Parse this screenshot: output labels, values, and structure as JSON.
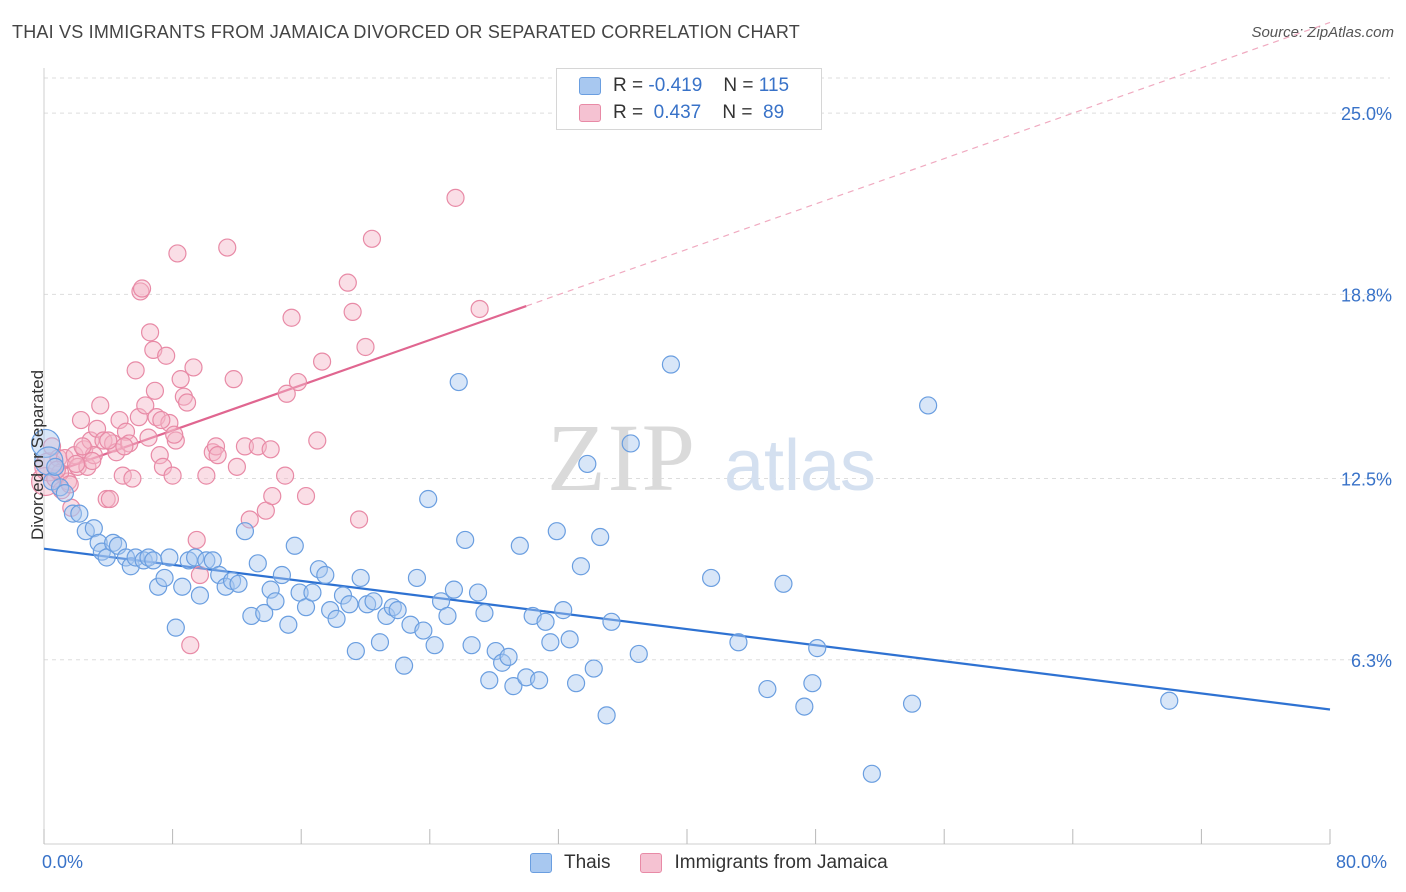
{
  "title": "THAI VS IMMIGRANTS FROM JAMAICA DIVORCED OR SEPARATED CORRELATION CHART",
  "source": "Source: ZipAtlas.com",
  "watermark": {
    "zip": "ZIP",
    "atlas": "atlas"
  },
  "legend": {
    "rows": [
      {
        "r_label": "R =",
        "r_value": "-0.419",
        "n_label": "N =",
        "n_value": "115"
      },
      {
        "r_label": "R =",
        "r_value": " 0.437",
        "n_label": "N =",
        "n_value": " 89"
      }
    ]
  },
  "colors": {
    "blue_fill": "#a8c8f0",
    "blue_stroke": "#6a9ee0",
    "blue_line": "#2e72d2",
    "pink_fill": "#f5b6c8",
    "pink_stroke": "#e88aa6",
    "pink_line": "#e06690",
    "axis_label": "#3872c8",
    "grid": "#dddddd"
  },
  "chart_data": {
    "type": "scatter",
    "title": "THAI VS IMMIGRANTS FROM JAMAICA DIVORCED OR SEPARATED CORRELATION CHART",
    "xlabel": "",
    "ylabel": "Divorced or Separated",
    "xlim": [
      0,
      80
    ],
    "ylim": [
      0,
      26.2
    ],
    "x_tick_labels": [
      "0.0%",
      "80.0%"
    ],
    "y_ticks": [
      6.3,
      12.5,
      18.8,
      25.0
    ],
    "y_tick_labels": [
      "6.3%",
      "12.5%",
      "18.8%",
      "25.0%"
    ],
    "grid": true,
    "legend_position": "top-center",
    "series": [
      {
        "name": "Thais",
        "trend": {
          "x": [
            0,
            80
          ],
          "y": [
            10.1,
            4.6
          ]
        },
        "points": [
          [
            0.1,
            13.7
          ],
          [
            0.3,
            13.1
          ],
          [
            0.5,
            12.4
          ],
          [
            0.7,
            12.9
          ],
          [
            1.0,
            12.2
          ],
          [
            1.3,
            12.0
          ],
          [
            1.8,
            11.3
          ],
          [
            2.2,
            11.3
          ],
          [
            2.6,
            10.7
          ],
          [
            3.1,
            10.8
          ],
          [
            3.4,
            10.3
          ],
          [
            3.6,
            10.0
          ],
          [
            3.9,
            9.8
          ],
          [
            4.3,
            10.3
          ],
          [
            4.6,
            10.2
          ],
          [
            5.1,
            9.8
          ],
          [
            5.4,
            9.5
          ],
          [
            5.7,
            9.8
          ],
          [
            6.2,
            9.7
          ],
          [
            6.5,
            9.8
          ],
          [
            6.8,
            9.7
          ],
          [
            7.1,
            8.8
          ],
          [
            7.5,
            9.1
          ],
          [
            7.8,
            9.8
          ],
          [
            8.2,
            7.4
          ],
          [
            8.6,
            8.8
          ],
          [
            9.0,
            9.7
          ],
          [
            9.4,
            9.8
          ],
          [
            9.7,
            8.5
          ],
          [
            10.1,
            9.7
          ],
          [
            10.5,
            9.7
          ],
          [
            10.9,
            9.2
          ],
          [
            11.3,
            8.8
          ],
          [
            11.7,
            9.0
          ],
          [
            12.1,
            8.9
          ],
          [
            12.5,
            10.7
          ],
          [
            12.9,
            7.8
          ],
          [
            13.3,
            9.6
          ],
          [
            13.7,
            7.9
          ],
          [
            14.1,
            8.7
          ],
          [
            14.4,
            8.3
          ],
          [
            14.8,
            9.2
          ],
          [
            15.2,
            7.5
          ],
          [
            15.6,
            10.2
          ],
          [
            15.9,
            8.6
          ],
          [
            16.3,
            8.1
          ],
          [
            16.7,
            8.6
          ],
          [
            17.1,
            9.4
          ],
          [
            17.5,
            9.2
          ],
          [
            17.8,
            8.0
          ],
          [
            18.2,
            7.7
          ],
          [
            18.6,
            8.5
          ],
          [
            19.0,
            8.2
          ],
          [
            19.4,
            6.6
          ],
          [
            19.7,
            9.1
          ],
          [
            20.1,
            8.2
          ],
          [
            20.5,
            8.3
          ],
          [
            20.9,
            6.9
          ],
          [
            21.3,
            7.8
          ],
          [
            21.7,
            8.1
          ],
          [
            22.0,
            8.0
          ],
          [
            22.4,
            6.1
          ],
          [
            22.8,
            7.5
          ],
          [
            23.2,
            9.1
          ],
          [
            23.6,
            7.3
          ],
          [
            23.9,
            11.8
          ],
          [
            24.3,
            6.8
          ],
          [
            24.7,
            8.3
          ],
          [
            25.1,
            7.8
          ],
          [
            25.5,
            8.7
          ],
          [
            25.8,
            15.8
          ],
          [
            26.2,
            10.4
          ],
          [
            26.6,
            6.8
          ],
          [
            27.0,
            8.6
          ],
          [
            27.4,
            7.9
          ],
          [
            27.7,
            5.6
          ],
          [
            28.1,
            6.6
          ],
          [
            28.5,
            6.2
          ],
          [
            28.9,
            6.4
          ],
          [
            29.2,
            5.4
          ],
          [
            29.6,
            10.2
          ],
          [
            30.0,
            5.7
          ],
          [
            30.4,
            7.8
          ],
          [
            30.8,
            5.6
          ],
          [
            31.2,
            7.6
          ],
          [
            31.5,
            6.9
          ],
          [
            31.9,
            10.7
          ],
          [
            32.3,
            8.0
          ],
          [
            32.7,
            7.0
          ],
          [
            33.1,
            5.5
          ],
          [
            33.4,
            9.5
          ],
          [
            33.8,
            13.0
          ],
          [
            34.2,
            6.0
          ],
          [
            34.6,
            10.5
          ],
          [
            35.0,
            4.4
          ],
          [
            35.3,
            7.6
          ],
          [
            36.5,
            13.7
          ],
          [
            37.0,
            6.5
          ],
          [
            39.0,
            16.4
          ],
          [
            41.5,
            9.1
          ],
          [
            43.2,
            6.9
          ],
          [
            45.0,
            5.3
          ],
          [
            46.0,
            8.9
          ],
          [
            47.3,
            4.7
          ],
          [
            47.8,
            5.5
          ],
          [
            48.1,
            6.7
          ],
          [
            51.5,
            2.4
          ],
          [
            54.0,
            4.8
          ],
          [
            55.0,
            15.0
          ],
          [
            70.0,
            4.9
          ]
        ]
      },
      {
        "name": "Immigrants from Jamaica",
        "trend": {
          "x": [
            0,
            30
          ],
          "y": [
            12.6,
            18.4
          ]
        },
        "trend_dashed_extension": {
          "x": [
            30,
            80
          ],
          "y": [
            18.4,
            28.1
          ]
        },
        "points": [
          [
            0.1,
            12.4
          ],
          [
            0.3,
            12.9
          ],
          [
            0.5,
            13.6
          ],
          [
            0.7,
            12.5
          ],
          [
            0.9,
            13.2
          ],
          [
            1.1,
            12.1
          ],
          [
            1.3,
            13.2
          ],
          [
            1.5,
            12.4
          ],
          [
            1.7,
            11.5
          ],
          [
            1.9,
            13.3
          ],
          [
            2.1,
            12.9
          ],
          [
            2.3,
            14.5
          ],
          [
            2.5,
            13.5
          ],
          [
            2.7,
            12.9
          ],
          [
            2.9,
            13.8
          ],
          [
            3.1,
            13.3
          ],
          [
            3.3,
            14.2
          ],
          [
            3.5,
            15.0
          ],
          [
            3.7,
            13.8
          ],
          [
            3.9,
            11.8
          ],
          [
            4.1,
            11.8
          ],
          [
            4.3,
            13.7
          ],
          [
            4.5,
            13.4
          ],
          [
            4.7,
            14.5
          ],
          [
            4.9,
            12.6
          ],
          [
            5.1,
            14.1
          ],
          [
            5.3,
            13.7
          ],
          [
            5.5,
            12.5
          ],
          [
            5.7,
            16.2
          ],
          [
            5.9,
            14.6
          ],
          [
            6.0,
            18.9
          ],
          [
            6.1,
            19.0
          ],
          [
            6.3,
            15.0
          ],
          [
            6.5,
            13.9
          ],
          [
            6.6,
            17.5
          ],
          [
            6.8,
            16.9
          ],
          [
            7.0,
            14.6
          ],
          [
            7.2,
            13.3
          ],
          [
            7.4,
            12.9
          ],
          [
            7.6,
            16.7
          ],
          [
            7.8,
            14.4
          ],
          [
            8.0,
            12.6
          ],
          [
            8.2,
            13.8
          ],
          [
            8.3,
            20.2
          ],
          [
            8.5,
            15.9
          ],
          [
            8.7,
            15.3
          ],
          [
            8.9,
            15.1
          ],
          [
            9.1,
            6.8
          ],
          [
            9.3,
            16.3
          ],
          [
            9.5,
            10.4
          ],
          [
            10.1,
            12.6
          ],
          [
            10.5,
            13.4
          ],
          [
            10.7,
            13.6
          ],
          [
            11.4,
            20.4
          ],
          [
            11.8,
            15.9
          ],
          [
            12.5,
            13.6
          ],
          [
            12.8,
            11.1
          ],
          [
            13.3,
            13.6
          ],
          [
            13.8,
            11.4
          ],
          [
            14.2,
            11.9
          ],
          [
            15.0,
            12.6
          ],
          [
            15.4,
            18.0
          ],
          [
            15.8,
            15.8
          ],
          [
            16.3,
            11.9
          ],
          [
            17.0,
            13.8
          ],
          [
            17.3,
            16.5
          ],
          [
            18.9,
            19.2
          ],
          [
            19.2,
            18.2
          ],
          [
            19.6,
            11.1
          ],
          [
            20.0,
            17.0
          ],
          [
            20.4,
            20.7
          ],
          [
            25.6,
            22.1
          ],
          [
            27.1,
            18.3
          ],
          [
            10.8,
            13.3
          ],
          [
            3.0,
            13.1
          ],
          [
            4.0,
            13.8
          ],
          [
            6.9,
            15.5
          ],
          [
            8.1,
            14.0
          ],
          [
            1.0,
            12.7
          ],
          [
            2.0,
            13.0
          ],
          [
            5.0,
            13.6
          ],
          [
            0.8,
            12.8
          ],
          [
            9.7,
            9.2
          ],
          [
            1.6,
            12.3
          ],
          [
            15.1,
            15.4
          ],
          [
            14.1,
            13.5
          ],
          [
            2.4,
            13.6
          ],
          [
            7.3,
            14.5
          ],
          [
            12.0,
            12.9
          ]
        ]
      }
    ]
  }
}
